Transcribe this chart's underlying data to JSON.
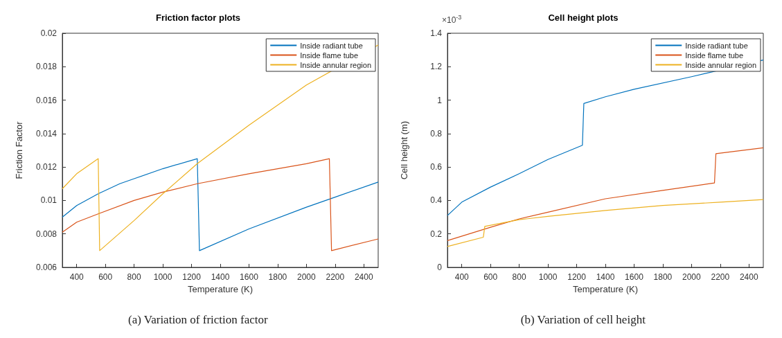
{
  "chart_data": [
    {
      "type": "line",
      "title": "Friction factor plots",
      "xlabel": "Temperature (K)",
      "ylabel": "Friction Factor",
      "xlim": [
        300,
        2500
      ],
      "xticks": [
        400,
        600,
        800,
        1000,
        1200,
        1400,
        1600,
        1800,
        2000,
        2200,
        2400
      ],
      "ylim": [
        0.006,
        0.02
      ],
      "yticks": [
        0.006,
        0.008,
        0.01,
        0.012,
        0.014,
        0.016,
        0.018,
        0.02
      ],
      "grid": false,
      "legend": "top right",
      "marker": "none",
      "line_style": "solid",
      "annotations": [
        "(a) Variation of friction factor"
      ],
      "series": [
        {
          "name": "Inside radiant tube",
          "color": "#0072bd",
          "x": [
            300,
            400,
            550,
            700,
            800,
            1000,
            1240,
            1255,
            1600,
            2000,
            2200,
            2500
          ],
          "values": [
            0.009,
            0.0097,
            0.0104,
            0.011,
            0.0113,
            0.0119,
            0.0125,
            0.007,
            0.0083,
            0.0096,
            0.0102,
            0.0111
          ]
        },
        {
          "name": "Inside flame tube",
          "color": "#d95319",
          "x": [
            300,
            400,
            550,
            800,
            1000,
            1240,
            1600,
            2000,
            2160,
            2175,
            2500
          ],
          "values": [
            0.0081,
            0.0087,
            0.0092,
            0.01,
            0.0105,
            0.011,
            0.0116,
            0.0122,
            0.0125,
            0.007,
            0.0077
          ]
        },
        {
          "name": "Inside annular region",
          "color": "#edb120",
          "x": [
            300,
            400,
            550,
            560,
            800,
            1000,
            1240,
            1600,
            2000,
            2500
          ],
          "values": [
            0.0107,
            0.0116,
            0.0125,
            0.007,
            0.0088,
            0.0104,
            0.0122,
            0.0145,
            0.0169,
            0.0193
          ]
        }
      ]
    },
    {
      "type": "line",
      "title": "Cell height plots",
      "xlabel": "Temperature (K)",
      "ylabel": "Cell height (m)",
      "xlim": [
        300,
        2500
      ],
      "xticks": [
        400,
        600,
        800,
        1000,
        1200,
        1400,
        1600,
        1800,
        2000,
        2200,
        2400
      ],
      "ylim": [
        0,
        1.4
      ],
      "yticks": [
        0,
        0.2,
        0.4,
        0.6,
        0.8,
        1,
        1.2,
        1.4
      ],
      "grid": false,
      "legend": "top right",
      "marker": "none",
      "line_style": "solid",
      "annotations": [
        "×10$^{-3}$",
        "(b) Variation of cell height"
      ],
      "series": [
        {
          "name": "Inside radiant tube",
          "color": "#0072bd",
          "x": [
            300,
            400,
            600,
            800,
            1000,
            1240,
            1250,
            1400,
            1600,
            2000,
            2500
          ],
          "values": [
            0.31,
            0.39,
            0.48,
            0.56,
            0.645,
            0.73,
            0.98,
            1.02,
            1.065,
            1.14,
            1.24
          ]
        },
        {
          "name": "Inside flame tube",
          "color": "#d95319",
          "x": [
            300,
            600,
            800,
            1000,
            1400,
            1800,
            2160,
            2170,
            2500
          ],
          "values": [
            0.16,
            0.24,
            0.29,
            0.33,
            0.41,
            0.46,
            0.505,
            0.68,
            0.715
          ]
        },
        {
          "name": "Inside annular region",
          "color": "#edb120",
          "x": [
            300,
            550,
            560,
            800,
            1000,
            1400,
            1800,
            2200,
            2500
          ],
          "values": [
            0.125,
            0.18,
            0.245,
            0.285,
            0.305,
            0.34,
            0.37,
            0.39,
            0.405
          ]
        }
      ]
    }
  ]
}
